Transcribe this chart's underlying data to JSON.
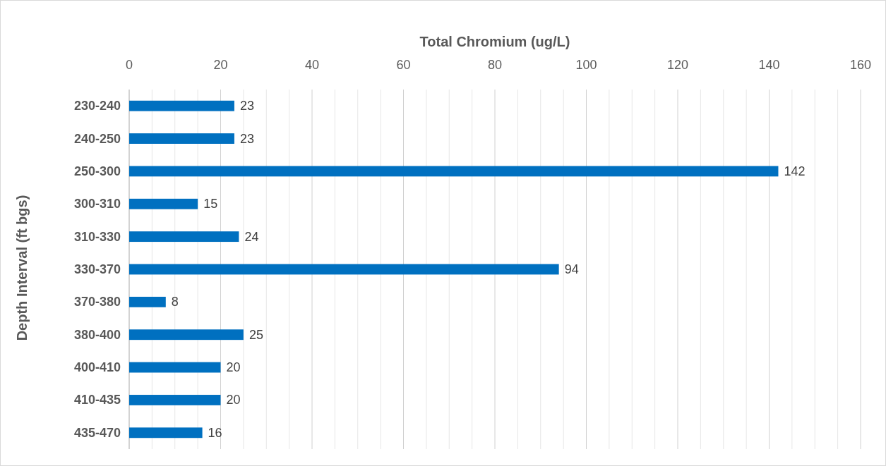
{
  "chart_data": {
    "type": "bar",
    "orientation": "horizontal",
    "xlabel": "Total Chromium (ug/L)",
    "ylabel": "Depth Interval (ft bgs)",
    "categories": [
      "230-240",
      "240-250",
      "250-300",
      "300-310",
      "310-330",
      "330-370",
      "370-380",
      "380-400",
      "400-410",
      "410-435",
      "435-470"
    ],
    "values": [
      23,
      23,
      142,
      15,
      24,
      94,
      8,
      25,
      20,
      20,
      16
    ],
    "color": "#0070c0",
    "xlim": [
      0,
      160
    ],
    "xticks": [
      0,
      {
        "value": 5,
        "label": null
      },
      {
        "value": 10,
        "label": null
      },
      {
        "value": 15,
        "label": null
      },
      20,
      {
        "value": 25,
        "label": null
      },
      {
        "value": 30,
        "label": null
      },
      {
        "value": 35,
        "label": null
      },
      40,
      {
        "value": 45,
        "label": null
      },
      {
        "value": 50,
        "label": null
      },
      {
        "value": 55,
        "label": null
      },
      60,
      {
        "value": 65,
        "label": null
      },
      {
        "value": 70,
        "label": null
      },
      {
        "value": 75,
        "label": null
      },
      80,
      {
        "value": 85,
        "label": null
      },
      {
        "value": 90,
        "label": null
      },
      {
        "value": 95,
        "label": null
      },
      100,
      {
        "value": 105,
        "label": null
      },
      {
        "value": 110,
        "label": null
      },
      {
        "value": 115,
        "label": null
      },
      120,
      {
        "value": 125,
        "label": null
      },
      {
        "value": 130,
        "label": null
      },
      {
        "value": 135,
        "label": null
      },
      140,
      {
        "value": 145,
        "label": null
      },
      {
        "value": 150,
        "label": null
      },
      {
        "value": 155,
        "label": null
      },
      160
    ],
    "grid": "x",
    "data_labels": true
  }
}
